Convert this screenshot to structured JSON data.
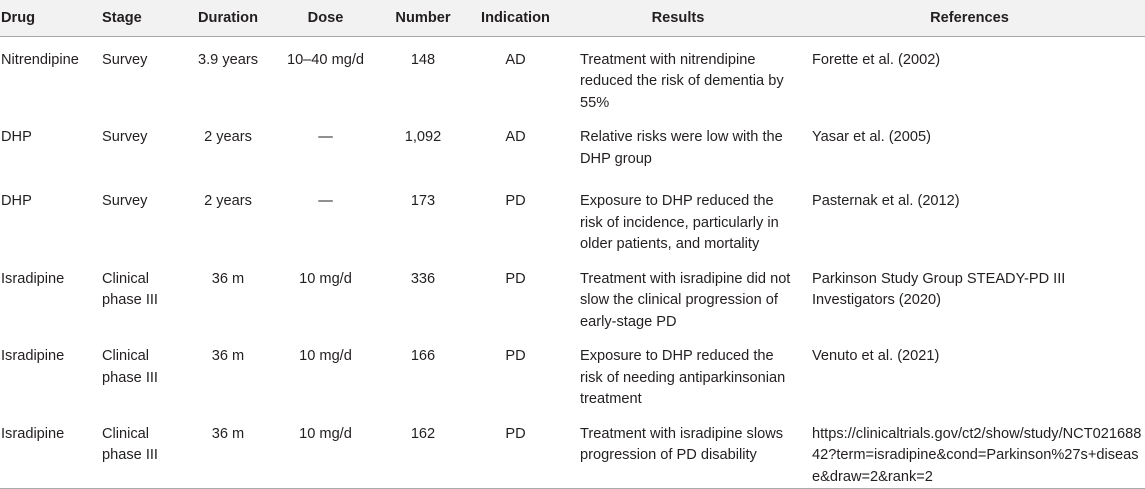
{
  "headers": [
    "Drug",
    "Stage",
    "Duration",
    "Dose",
    "Number",
    "Indication",
    "Results",
    "References"
  ],
  "rows": [
    {
      "drug": "Nitrendipine",
      "stage": "Survey",
      "duration": "3.9 years",
      "dose": "10–40 mg/d",
      "number": "148",
      "indication": "AD",
      "results": "Treatment with nitrendipine reduced the risk of dementia by 55%",
      "references": "Forette et al. (2002)"
    },
    {
      "drug": "DHP",
      "stage": "Survey",
      "duration": "2 years",
      "dose": "—",
      "number": "1,092",
      "indication": "AD",
      "results": "Relative risks were low with the DHP group",
      "references": "Yasar et al. (2005)"
    },
    {
      "drug": "DHP",
      "stage": "Survey",
      "duration": "2 years",
      "dose": "—",
      "number": "173",
      "indication": "PD",
      "results": "Exposure to DHP reduced the risk of incidence, particularly in older patients, and mortality",
      "references": "Pasternak et al. (2012)"
    },
    {
      "drug": "Isradipine",
      "stage": "Clinical phase III",
      "duration": "36 m",
      "dose": "10 mg/d",
      "number": "336",
      "indication": "PD",
      "results": "Treatment with isradipine did not slow the clinical progression of early-stage PD",
      "references": "Parkinson Study Group STEADY-PD III Investigators (2020)"
    },
    {
      "drug": "Isradipine",
      "stage": "Clinical phase III",
      "duration": "36 m",
      "dose": "10 mg/d",
      "number": "166",
      "indication": "PD",
      "results": "Exposure to DHP reduced the risk of needing antiparkinsonian treatment",
      "references": "Venuto et al. (2021)"
    },
    {
      "drug": "Isradipine",
      "stage": "Clinical phase III",
      "duration": "36 m",
      "dose": "10 mg/d",
      "number": "162",
      "indication": "PD",
      "results": "Treatment with isradipine slows progression of PD disability",
      "references": "https://clinicaltrials.gov/ct2/show/study/NCT02168842?term=isradipine&cond=Parkinson%27s+disease&draw=2&rank=2"
    }
  ]
}
